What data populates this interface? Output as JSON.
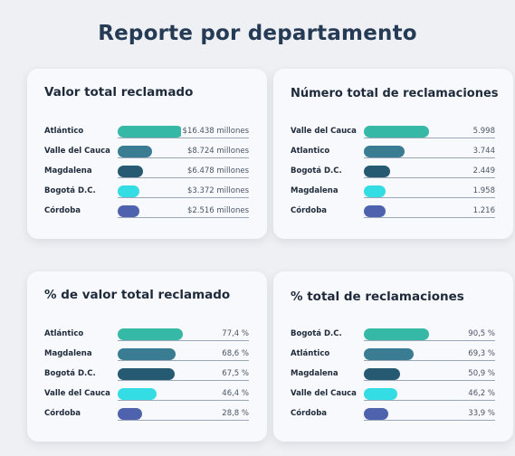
{
  "page": {
    "title": "Reporte por departamento"
  },
  "colors": [
    "#36b8a7",
    "#3a7d93",
    "#265a72",
    "#34dce3",
    "#4f62ad"
  ],
  "chart_data": [
    {
      "type": "bar",
      "title": "Valor total reclamado",
      "categories": [
        "Atlántico",
        "Valle del Cauca",
        "Magdalena",
        "Bogotá D.C.",
        "Córdoba"
      ],
      "values": [
        16438,
        8724,
        6478,
        3372,
        2516
      ],
      "value_labels": [
        "$16.438 millones",
        "$8.724 millones",
        "$6.478 millones",
        "$3.372 millones",
        "$2.516 millones"
      ],
      "unit": "millones"
    },
    {
      "type": "bar",
      "title": "Número total de reclamaciones",
      "categories": [
        "Valle del Cauca",
        "Atlantico",
        "Bogotá D.C.",
        "Magdalena",
        "Córdoba"
      ],
      "values": [
        5998,
        3744,
        2449,
        1958,
        1216
      ],
      "value_labels": [
        "5.998",
        "3.744",
        "2.449",
        "1.958",
        "1.216"
      ]
    },
    {
      "type": "bar",
      "title": "% de valor total reclamado",
      "categories": [
        "Atlántico",
        "Magdalena",
        "Bogotá D.C.",
        "Valle del Cauca",
        "Córdoba"
      ],
      "values": [
        77.4,
        68.6,
        67.5,
        46.4,
        28.8
      ],
      "value_labels": [
        "77,4 %",
        "68,6 %",
        "67,5 %",
        "46,4 %",
        "28,8 %"
      ],
      "unit": "%"
    },
    {
      "type": "bar",
      "title": "% total de reclamaciones",
      "categories": [
        "Bogotá D.C.",
        "Atlántico",
        "Magdalena",
        "Valle del Cauca",
        "Córdoba"
      ],
      "values": [
        90.5,
        69.3,
        50.9,
        46.2,
        33.9
      ],
      "value_labels": [
        "90,5 %",
        "69,3 %",
        "50,9 %",
        "46,2 %",
        "33,9 %"
      ],
      "unit": "%"
    }
  ]
}
